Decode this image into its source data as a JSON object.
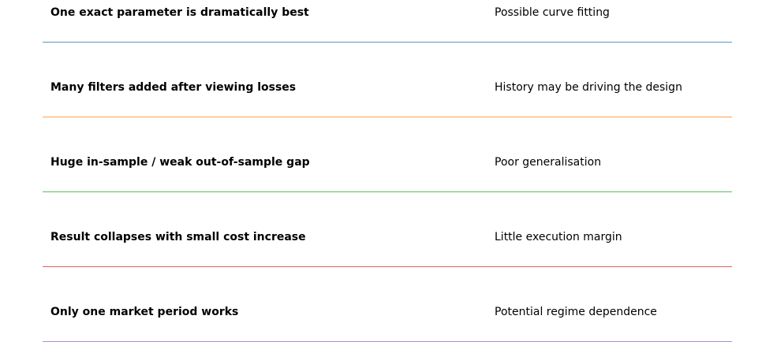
{
  "rows": [
    {
      "signal": "One exact parameter is dramatically best",
      "meaning": "Possible curve fitting"
    },
    {
      "signal": "Many filters added after viewing losses",
      "meaning": "History may be driving the design"
    },
    {
      "signal": "Huge in-sample / weak out-of-sample gap",
      "meaning": "Poor generalisation"
    },
    {
      "signal": "Result collapses with small cost increase",
      "meaning": "Little execution margin"
    },
    {
      "signal": "Only one market period works",
      "meaning": "Potential regime dependence"
    }
  ]
}
